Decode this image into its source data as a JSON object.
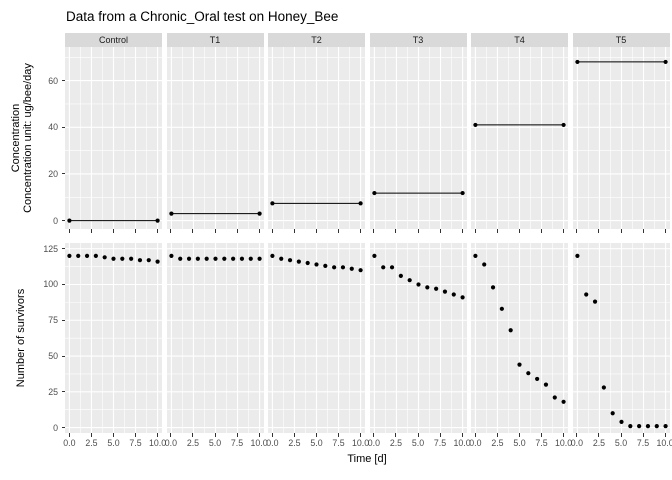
{
  "title": "Data from a Chronic_Oral test on Honey_Bee",
  "colors": {
    "panel_background": "#EBEBEB",
    "strip_background": "#D9D9D9",
    "grid_line": "#FFFFFF",
    "point": "#000000",
    "tick_mark": "#333333",
    "tick_label": "#4D4D4D",
    "text": "#000000"
  },
  "chart_data": {
    "type": "scatter",
    "title": "Data from a Chronic_Oral test on Honey_Bee",
    "facets": [
      "Control",
      "T1",
      "T2",
      "T3",
      "T4",
      "T5"
    ],
    "x": [
      0,
      1,
      2,
      3,
      4,
      5,
      6,
      7,
      8,
      9,
      10
    ],
    "xlabel": "Time [d]",
    "xlim": [
      -0.5,
      10.5
    ],
    "x_ticks": [
      {
        "value": 0,
        "label": "0.0"
      },
      {
        "value": 2.5,
        "label": "2.5"
      },
      {
        "value": 5,
        "label": "5.0"
      },
      {
        "value": 7.5,
        "label": "7.5"
      },
      {
        "value": 10,
        "label": "10.0"
      }
    ],
    "x_minor": [
      1.25,
      3.75,
      6.25,
      8.75
    ],
    "grid": true,
    "legend": false,
    "rows": [
      {
        "name": "concentration",
        "style": "segment",
        "ylabel_lines": [
          "Concentration",
          "Concentration unit: ug/bee/day"
        ],
        "y_ticks": [
          0,
          20,
          40,
          60
        ],
        "y_minor": [
          10,
          30,
          50,
          70
        ],
        "ylim": [
          -3.6,
          74.4
        ],
        "series": [
          {
            "name": "Control",
            "value": 0,
            "x_span": [
              0,
              10
            ]
          },
          {
            "name": "T1",
            "value": 3,
            "x_span": [
              0,
              10
            ]
          },
          {
            "name": "T2",
            "value": 7.4,
            "x_span": [
              0,
              10
            ]
          },
          {
            "name": "T3",
            "value": 11.8,
            "x_span": [
              0,
              10
            ]
          },
          {
            "name": "T4",
            "value": 41,
            "x_span": [
              0,
              10
            ]
          },
          {
            "name": "T5",
            "value": 68,
            "x_span": [
              0,
              10
            ]
          }
        ]
      },
      {
        "name": "survivors",
        "style": "points",
        "ylabel_lines": [
          "Number of survivors"
        ],
        "y_ticks": [
          0,
          25,
          50,
          75,
          100,
          125
        ],
        "y_minor": [
          12.5,
          37.5,
          62.5,
          87.5,
          112.5
        ],
        "ylim": [
          -3.8,
          129
        ],
        "series": [
          {
            "name": "Control",
            "values": [
              120,
              120,
              120,
              120,
              119,
              118,
              118,
              118,
              117,
              117,
              116
            ]
          },
          {
            "name": "T1",
            "values": [
              120,
              118,
              118,
              118,
              118,
              118,
              118,
              118,
              118,
              118,
              118
            ]
          },
          {
            "name": "T2",
            "values": [
              120,
              118,
              117,
              116,
              115,
              114,
              113,
              112,
              112,
              111,
              110
            ]
          },
          {
            "name": "T3",
            "values": [
              120,
              112,
              112,
              106,
              103,
              100,
              98,
              97,
              95,
              93,
              91
            ]
          },
          {
            "name": "T4",
            "values": [
              120,
              114,
              98,
              83,
              68,
              44,
              38,
              34,
              30,
              21,
              18
            ]
          },
          {
            "name": "T5",
            "values": [
              120,
              93,
              88,
              28,
              10,
              4,
              1,
              1,
              1,
              1,
              1
            ]
          }
        ]
      }
    ]
  }
}
